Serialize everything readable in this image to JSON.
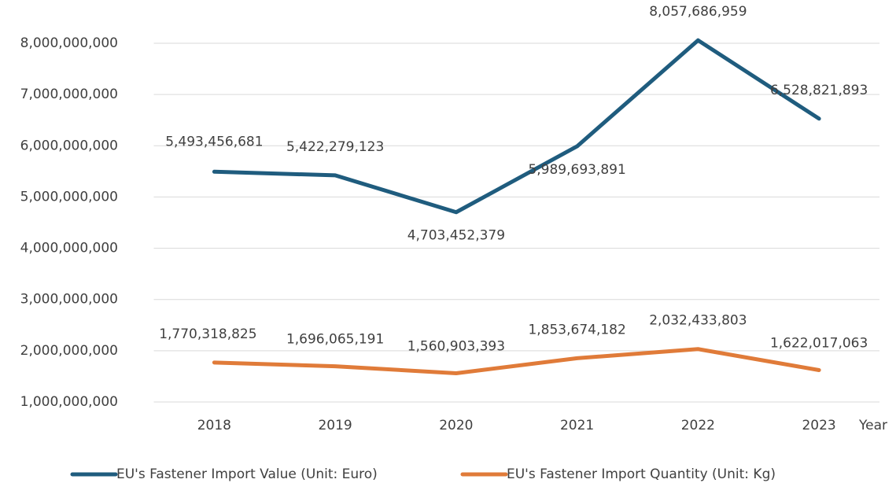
{
  "chart_data": {
    "type": "line",
    "categories": [
      "2018",
      "2019",
      "2020",
      "2021",
      "2022",
      "2023"
    ],
    "x_label": "Year",
    "series": [
      {
        "name": "EU's Fastener Import Value (Unit: Euro)",
        "color": "#1f5c7e",
        "values": [
          5493456681,
          5422279123,
          4703452379,
          5989693891,
          8057686959,
          6528821893
        ],
        "value_labels": [
          "5,493,456,681",
          "5,422,279,123",
          "4,703,452,379",
          "5,989,693,891",
          "8,057,686,959",
          "6,528,821,893"
        ]
      },
      {
        "name": "EU's Fastener Import Quantity (Unit: Kg)",
        "color": "#e07b39",
        "values": [
          1770318825,
          1696065191,
          1560903393,
          1853674182,
          2032433803,
          1622017063
        ],
        "value_labels": [
          "1,770,318,825",
          "1,696,065,191",
          "1,560,903,393",
          "1,853,674,182",
          "2,032,433,803",
          "1,622,017,063"
        ]
      }
    ],
    "ylim": [
      1000000000,
      8000000000
    ],
    "yticks": [
      {
        "value": 1000000000,
        "label": "1,000,000,000"
      },
      {
        "value": 2000000000,
        "label": "2,000,000,000"
      },
      {
        "value": 3000000000,
        "label": "3,000,000,000"
      },
      {
        "value": 4000000000,
        "label": "4,000,000,000"
      },
      {
        "value": 5000000000,
        "label": "5,000,000,000"
      },
      {
        "value": 6000000000,
        "label": "6,000,000,000"
      },
      {
        "value": 7000000000,
        "label": "7,000,000,000"
      },
      {
        "value": 8000000000,
        "label": "8,000,000,000"
      }
    ],
    "grid": true,
    "legend": "bottom"
  }
}
